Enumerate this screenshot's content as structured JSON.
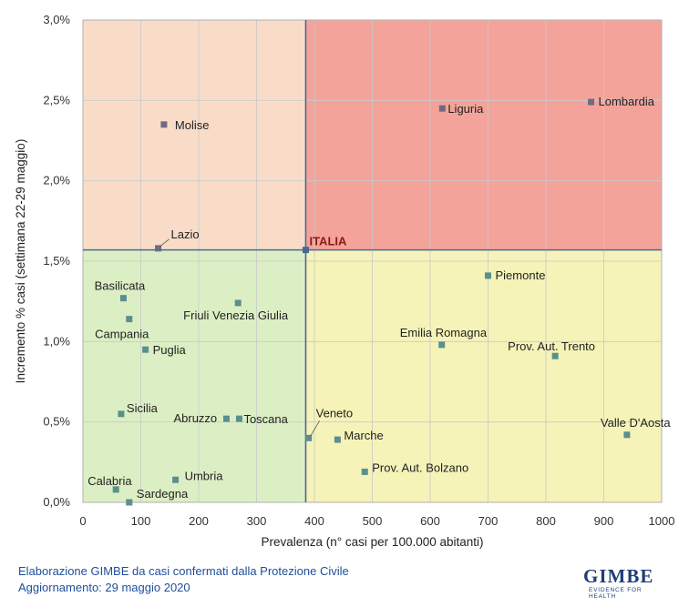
{
  "chart_data": {
    "type": "scatter",
    "xlabel": "Prevalenza  (n° casi per 100.000 abitanti)",
    "ylabel": "Incremento  %  casi (settimana 22-29 maggio)",
    "xlim": [
      0,
      1000
    ],
    "ylim": [
      0,
      0.03
    ],
    "x_ticks": [
      "0",
      "100",
      "200",
      "300",
      "400",
      "500",
      "600",
      "700",
      "800",
      "900",
      "1000"
    ],
    "y_ticks": [
      "0,0%",
      "0,5%",
      "1,0%",
      "1,5%",
      "2,0%",
      "2,5%",
      "3,0%"
    ],
    "grid": true,
    "reference": {
      "label": "ITALIA",
      "x": 385,
      "y": 0.0157
    },
    "quadrant_colors": {
      "top_left": "#f9dcc8",
      "top_right": "#f4a39a",
      "bottom_left": "#dcefc4",
      "bottom_right": "#f5f3b8"
    },
    "marker_color": "#5b8f8e",
    "marker_color_top": "#6f6a86",
    "points": [
      {
        "name": "Lombardia",
        "x": 878,
        "y": 0.0249
      },
      {
        "name": "Liguria",
        "x": 621,
        "y": 0.0245
      },
      {
        "name": "Molise",
        "x": 140,
        "y": 0.0235
      },
      {
        "name": "Lazio",
        "x": 130,
        "y": 0.0158
      },
      {
        "name": "Piemonte",
        "x": 700,
        "y": 0.0141
      },
      {
        "name": "Basilicata",
        "x": 70,
        "y": 0.0127
      },
      {
        "name": "Friuli Venezia Giulia",
        "x": 268,
        "y": 0.0124
      },
      {
        "name": "Campania",
        "x": 80,
        "y": 0.0114
      },
      {
        "name": "Emilia Romagna",
        "x": 620,
        "y": 0.0098
      },
      {
        "name": "Puglia",
        "x": 108,
        "y": 0.0095
      },
      {
        "name": "Prov. Aut. Trento",
        "x": 816,
        "y": 0.0091
      },
      {
        "name": "Sicilia",
        "x": 66,
        "y": 0.0055
      },
      {
        "name": "Abruzzo",
        "x": 248,
        "y": 0.0052
      },
      {
        "name": "Toscana",
        "x": 270,
        "y": 0.0052
      },
      {
        "name": "Veneto",
        "x": 390,
        "y": 0.004
      },
      {
        "name": "Marche",
        "x": 440,
        "y": 0.0039
      },
      {
        "name": "Valle D'Aosta",
        "x": 940,
        "y": 0.0042
      },
      {
        "name": "Prov. Aut. Bolzano",
        "x": 487,
        "y": 0.0019
      },
      {
        "name": "Umbria",
        "x": 160,
        "y": 0.0014
      },
      {
        "name": "Calabria",
        "x": 57,
        "y": 0.0008
      },
      {
        "name": "Sardegna",
        "x": 80,
        "y": 0.0
      }
    ]
  },
  "footer": {
    "line1": "Elaborazione GIMBE da casi confermati dalla Protezione Civile",
    "line2": "Aggiornamento: 29 maggio 2020"
  },
  "logo": {
    "name": "GIMBE",
    "tagline": "EVIDENCE FOR HEALTH"
  }
}
